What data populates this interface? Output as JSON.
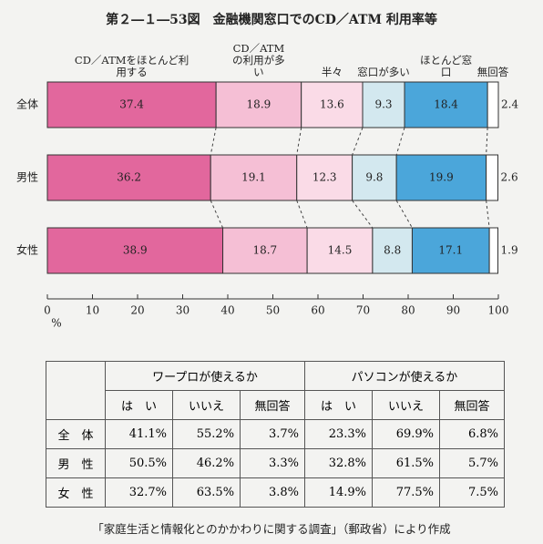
{
  "chart_data": {
    "type": "stacked-barh",
    "title": "第２―１―53図　金融機関窓口でのCD／ATM 利用率等",
    "categories": [
      "全体",
      "男性",
      "女性"
    ],
    "series": [
      {
        "name": "CD／ATMをほとんど利用する",
        "color": "#e2679d",
        "values": [
          37.4,
          36.2,
          38.9
        ]
      },
      {
        "name": "CD／ATMの利用が多い",
        "color": "#f5bfd5",
        "values": [
          18.9,
          19.1,
          18.7
        ]
      },
      {
        "name": "半々",
        "color": "#fadbe7",
        "values": [
          13.6,
          12.3,
          14.5
        ]
      },
      {
        "name": "窓口が多い",
        "color": "#d3e8ef",
        "values": [
          9.3,
          9.8,
          8.8
        ]
      },
      {
        "name": "ほとんど窓口",
        "color": "#4ba6da",
        "values": [
          18.4,
          19.9,
          17.1
        ]
      },
      {
        "name": "無回答",
        "color": "#ffffff",
        "values": [
          2.4,
          2.6,
          1.9
        ]
      }
    ],
    "xlim": [
      0,
      100
    ],
    "xticks": [
      0,
      10,
      20,
      30,
      40,
      50,
      60,
      70,
      80,
      90,
      100
    ],
    "x_unit": "%"
  },
  "table": {
    "groups": [
      "ワープロが使えるか",
      "パソコンが使えるか"
    ],
    "columns": [
      "は　い",
      "いいえ",
      "無回答",
      "は　い",
      "いいえ",
      "無回答"
    ],
    "rows": [
      {
        "label": "全　体",
        "cells": [
          "41.1%",
          "55.2%",
          "3.7%",
          "23.3%",
          "69.9%",
          "6.8%"
        ]
      },
      {
        "label": "男　性",
        "cells": [
          "50.5%",
          "46.2%",
          "3.3%",
          "32.8%",
          "61.5%",
          "5.7%"
        ]
      },
      {
        "label": "女　性",
        "cells": [
          "32.7%",
          "63.5%",
          "3.8%",
          "14.9%",
          "77.5%",
          "7.5%"
        ]
      }
    ]
  },
  "source": "「家庭生活と情報化とのかかわりに関する調査」（郵政省）により作成"
}
